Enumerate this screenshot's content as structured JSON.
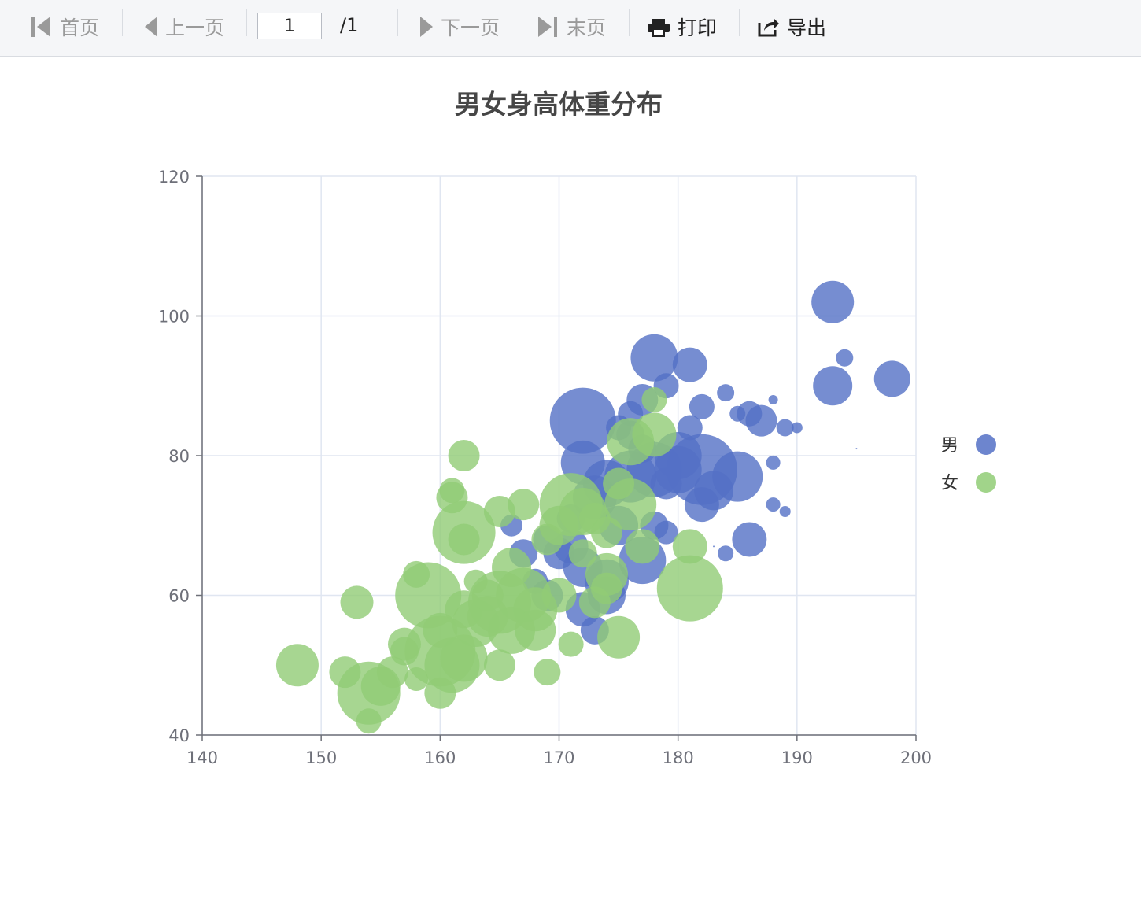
{
  "toolbar": {
    "first_label": "首页",
    "prev_label": "上一页",
    "page_value": "1",
    "page_total": "/1",
    "next_label": "下一页",
    "last_label": "末页",
    "print_label": "打印",
    "export_label": "导出"
  },
  "chart_data": {
    "type": "scatter",
    "title": "男女身高体重分布",
    "xlabel": "",
    "ylabel": "",
    "xlim": [
      140,
      200
    ],
    "ylim": [
      40,
      120
    ],
    "xticks": [
      140,
      150,
      160,
      170,
      180,
      190,
      200
    ],
    "yticks": [
      40,
      60,
      80,
      100,
      120
    ],
    "grid": true,
    "legend_position": "right",
    "series": [
      {
        "name": "男",
        "color": "#5470c6",
        "points": [
          [
            172,
            85,
            42
          ],
          [
            178,
            94,
            30
          ],
          [
            181,
            93,
            22
          ],
          [
            179,
            90,
            16
          ],
          [
            177,
            88,
            20
          ],
          [
            184,
            89,
            11
          ],
          [
            182,
            87,
            16
          ],
          [
            186,
            86,
            16
          ],
          [
            187,
            85,
            20
          ],
          [
            185,
            86,
            10
          ],
          [
            188,
            88,
            6
          ],
          [
            189,
            84,
            11
          ],
          [
            190,
            84,
            7
          ],
          [
            181,
            84,
            16
          ],
          [
            176,
            86,
            16
          ],
          [
            193,
            102,
            27
          ],
          [
            194,
            94,
            11
          ],
          [
            193,
            90,
            25
          ],
          [
            198,
            91,
            23
          ],
          [
            195,
            81,
            1
          ],
          [
            182,
            78,
            45
          ],
          [
            185,
            77,
            32
          ],
          [
            183,
            75,
            25
          ],
          [
            188,
            79,
            9
          ],
          [
            188,
            73,
            9
          ],
          [
            189,
            72,
            7
          ],
          [
            186,
            68,
            22
          ],
          [
            180,
            80,
            30
          ],
          [
            178,
            78,
            35
          ],
          [
            176,
            77,
            33
          ],
          [
            174,
            76,
            30
          ],
          [
            172,
            79,
            28
          ],
          [
            173,
            74,
            28
          ],
          [
            175,
            70,
            25
          ],
          [
            177,
            65,
            30
          ],
          [
            174,
            62,
            28
          ],
          [
            172,
            64,
            25
          ],
          [
            171,
            67,
            22
          ],
          [
            170,
            66,
            20
          ],
          [
            169,
            68,
            18
          ],
          [
            174,
            60,
            24
          ],
          [
            172,
            58,
            22
          ],
          [
            180,
            78,
            30
          ],
          [
            182,
            73,
            22
          ],
          [
            179,
            69,
            15
          ],
          [
            178,
            70,
            18
          ],
          [
            176,
            83,
            18
          ],
          [
            183,
            67,
            1
          ],
          [
            184,
            66,
            10
          ],
          [
            167,
            66,
            18
          ],
          [
            166,
            70,
            14
          ],
          [
            173,
            55,
            18
          ],
          [
            175,
            84,
            16
          ],
          [
            177,
            81,
            18
          ],
          [
            179,
            76,
            20
          ],
          [
            169,
            60,
            20
          ],
          [
            171,
            71,
            18
          ],
          [
            168,
            62,
            16
          ]
        ]
      },
      {
        "name": "女",
        "color": "#91cc75",
        "points": [
          [
            148,
            50,
            27
          ],
          [
            152,
            49,
            20
          ],
          [
            153,
            59,
            21
          ],
          [
            154,
            46,
            40
          ],
          [
            155,
            47,
            25
          ],
          [
            154,
            42,
            16
          ],
          [
            156,
            49,
            20
          ],
          [
            157,
            53,
            21
          ],
          [
            158,
            48,
            15
          ],
          [
            158,
            63,
            17
          ],
          [
            159,
            60,
            42
          ],
          [
            160,
            52,
            45
          ],
          [
            160,
            46,
            20
          ],
          [
            161,
            50,
            35
          ],
          [
            162,
            51,
            30
          ],
          [
            161,
            74,
            20
          ],
          [
            161,
            75,
            16
          ],
          [
            162,
            80,
            20
          ],
          [
            162,
            69,
            40
          ],
          [
            162,
            68,
            20
          ],
          [
            163,
            62,
            15
          ],
          [
            164,
            57,
            26
          ],
          [
            165,
            50,
            20
          ],
          [
            166,
            55,
            30
          ],
          [
            167,
            60,
            35
          ],
          [
            168,
            58,
            28
          ],
          [
            165,
            72,
            20
          ],
          [
            167,
            73,
            20
          ],
          [
            169,
            68,
            20
          ],
          [
            170,
            70,
            25
          ],
          [
            171,
            73,
            40
          ],
          [
            172,
            72,
            30
          ],
          [
            173,
            71,
            20
          ],
          [
            174,
            69,
            20
          ],
          [
            175,
            76,
            20
          ],
          [
            176,
            73,
            33
          ],
          [
            176,
            82,
            30
          ],
          [
            178,
            83,
            28
          ],
          [
            178,
            88,
            16
          ],
          [
            175,
            54,
            27
          ],
          [
            174,
            61,
            20
          ],
          [
            174,
            63,
            27
          ],
          [
            177,
            67,
            22
          ],
          [
            181,
            61,
            42
          ],
          [
            181,
            67,
            22
          ],
          [
            169,
            49,
            17
          ],
          [
            165,
            59,
            40
          ],
          [
            163,
            56,
            30
          ],
          [
            166,
            64,
            25
          ],
          [
            168,
            55,
            26
          ],
          [
            170,
            60,
            22
          ],
          [
            171,
            53,
            16
          ],
          [
            162,
            58,
            24
          ],
          [
            164,
            60,
            20
          ],
          [
            172,
            66,
            18
          ],
          [
            173,
            59,
            20
          ],
          [
            157,
            52,
            18
          ],
          [
            160,
            55,
            22
          ]
        ]
      }
    ]
  }
}
